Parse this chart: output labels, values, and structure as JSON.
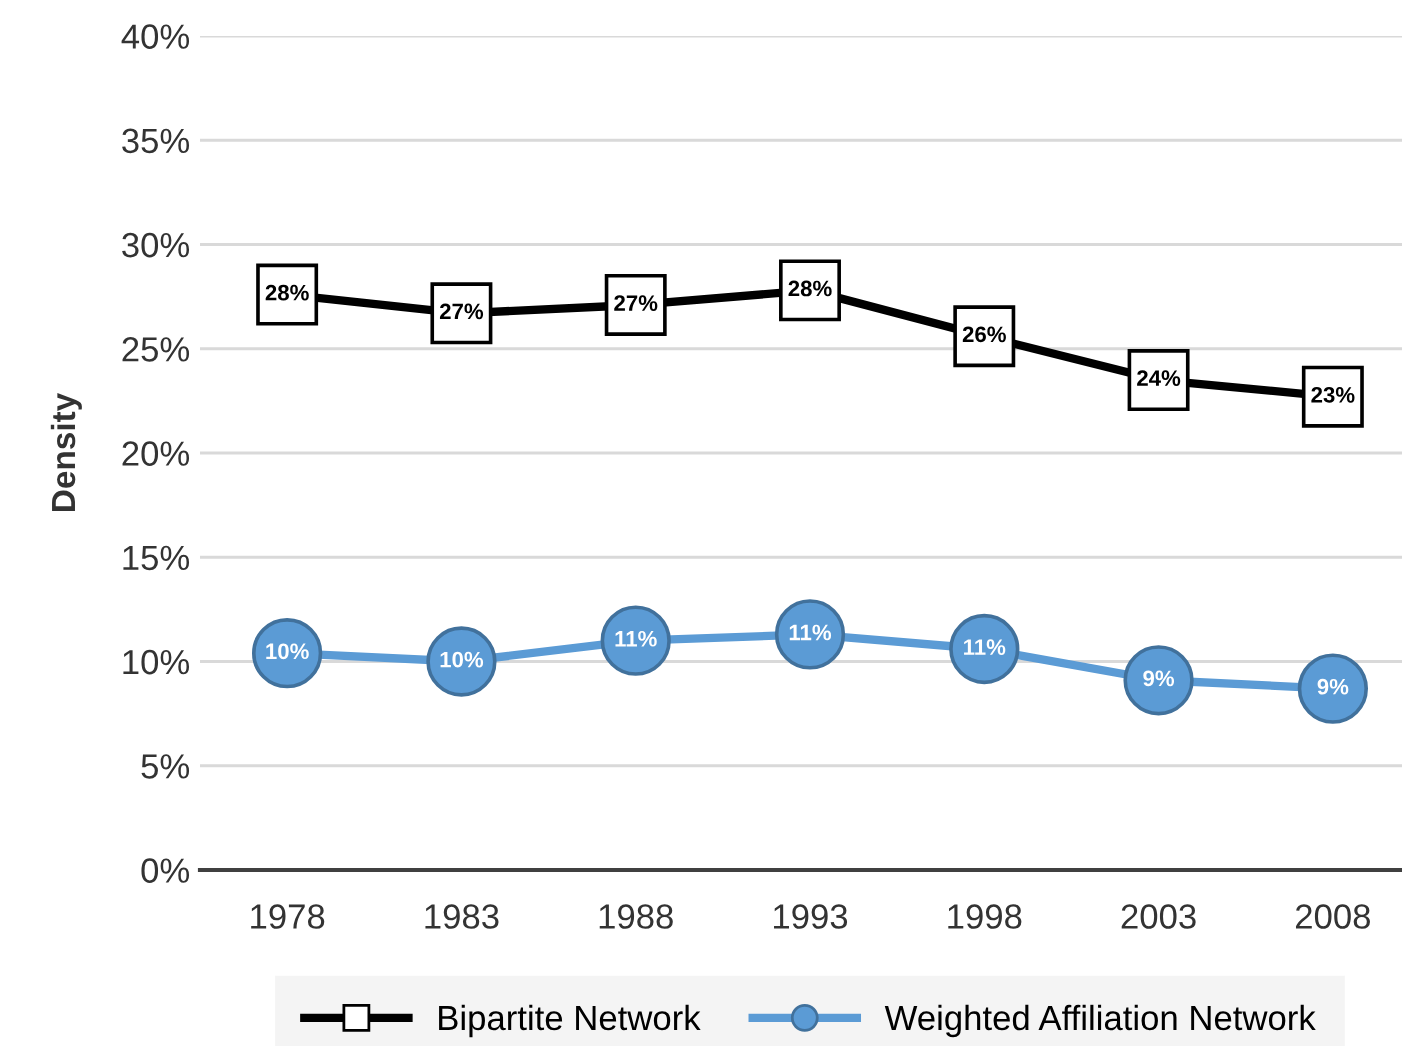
{
  "chart_data": {
    "type": "line",
    "ylabel": "Density",
    "categories": [
      "1978",
      "1983",
      "1988",
      "1993",
      "1998",
      "2003",
      "2008"
    ],
    "ylim": [
      0,
      40
    ],
    "yticks": [
      {
        "value": 0,
        "label": "0%"
      },
      {
        "value": 5,
        "label": "5%"
      },
      {
        "value": 10,
        "label": "10%"
      },
      {
        "value": 15,
        "label": "15%"
      },
      {
        "value": 20,
        "label": "20%"
      },
      {
        "value": 25,
        "label": "25%"
      },
      {
        "value": 30,
        "label": "30%"
      },
      {
        "value": 35,
        "label": "35%"
      },
      {
        "value": 40,
        "label": "40%"
      }
    ],
    "grid": "y",
    "legend": "bottom",
    "series": [
      {
        "name": "Bipartite Network",
        "color": "#000000",
        "marker": "square",
        "values": [
          27.6,
          26.7,
          27.1,
          27.8,
          25.6,
          23.5,
          22.7
        ],
        "value_labels": [
          "28%",
          "27%",
          "27%",
          "28%",
          "26%",
          "24%",
          "23%"
        ]
      },
      {
        "name": "Weighted Affiliation Network",
        "color": "#5b9bd5",
        "marker": "circle",
        "values": [
          10.4,
          10.0,
          11.0,
          11.3,
          10.6,
          9.1,
          8.7
        ],
        "value_labels": [
          "10%",
          "10%",
          "11%",
          "11%",
          "11%",
          "9%",
          "9%"
        ]
      }
    ]
  }
}
